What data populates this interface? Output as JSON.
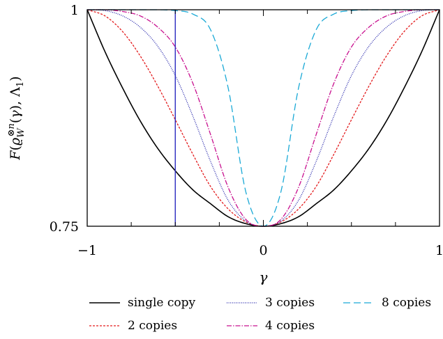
{
  "chart_data": {
    "type": "line",
    "xlabel": "γ",
    "ylabel": "F(ϱ_W^{⊗n}(γ), Λ_1)",
    "xlim": [
      -1,
      1
    ],
    "ylim": [
      0.75,
      1
    ],
    "xticks": [
      "−1",
      "0",
      "1"
    ],
    "yticks": [
      "0.75",
      "1"
    ],
    "grid": false,
    "legend_position": "bottom",
    "vertical_marker": {
      "x": -0.5,
      "color": "#2a2ac0"
    },
    "x": [
      -1,
      -0.9,
      -0.8,
      -0.7,
      -0.6,
      -0.5,
      -0.4,
      -0.3,
      -0.2,
      -0.1,
      0,
      0.1,
      0.2,
      0.3,
      0.4,
      0.5,
      0.6,
      0.7,
      0.8,
      0.9,
      1
    ],
    "series": [
      {
        "name": "single copy",
        "color": "#000000",
        "dash": "",
        "values": [
          1.0,
          0.952,
          0.91,
          0.872,
          0.84,
          0.814,
          0.792,
          0.776,
          0.761,
          0.753,
          0.75,
          0.753,
          0.761,
          0.776,
          0.792,
          0.814,
          0.84,
          0.872,
          0.91,
          0.952,
          1.0
        ]
      },
      {
        "name": "2 copies",
        "color": "#e31a1c",
        "dash": "3,2",
        "values": [
          1.0,
          0.993,
          0.975,
          0.947,
          0.912,
          0.873,
          0.833,
          0.796,
          0.77,
          0.755,
          0.75,
          0.755,
          0.77,
          0.796,
          0.833,
          0.873,
          0.912,
          0.947,
          0.975,
          0.993,
          1.0
        ]
      },
      {
        "name": "3 copies",
        "color": "#1f1fa8",
        "dash": "1,1.6",
        "values": [
          1.0,
          0.999,
          0.993,
          0.98,
          0.958,
          0.924,
          0.877,
          0.825,
          0.78,
          0.756,
          0.75,
          0.756,
          0.78,
          0.825,
          0.877,
          0.924,
          0.958,
          0.98,
          0.993,
          0.999,
          1.0
        ]
      },
      {
        "name": "4 copies",
        "color": "#c8108f",
        "dash": "7,2,1.5,2",
        "values": [
          1.0,
          1.0,
          0.998,
          0.993,
          0.98,
          0.957,
          0.915,
          0.856,
          0.795,
          0.758,
          0.75,
          0.758,
          0.795,
          0.856,
          0.915,
          0.957,
          0.98,
          0.993,
          0.998,
          1.0,
          1.0
        ]
      },
      {
        "name": "8 copies",
        "color": "#1aa9d6",
        "dash": "10,5",
        "values": [
          1.0,
          1.0,
          1.0,
          1.0,
          1.0,
          0.999,
          0.995,
          0.977,
          0.91,
          0.79,
          0.75,
          0.79,
          0.91,
          0.977,
          0.995,
          0.999,
          1.0,
          1.0,
          1.0,
          1.0,
          1.0
        ]
      }
    ]
  }
}
